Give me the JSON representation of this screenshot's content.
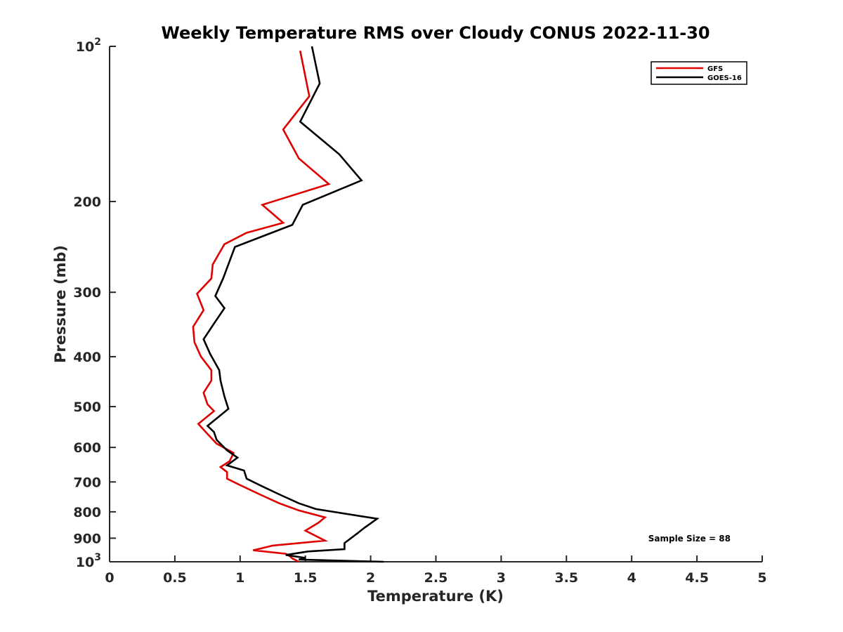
{
  "chart_data": {
    "type": "line",
    "title": "Weekly Temperature RMS over Cloudy CONUS 2022-11-30",
    "xlabel": "Temperature (K)",
    "ylabel": "Pressure (mb)",
    "xlim": [
      0,
      5
    ],
    "ylim": [
      100,
      1000
    ],
    "yscale": "log",
    "ydir": "reverse",
    "grid": false,
    "legend_position": "top-right",
    "x_ticks": [
      0,
      0.5,
      1,
      1.5,
      2,
      2.5,
      3,
      3.5,
      4,
      4.5,
      5
    ],
    "x_tick_labels": [
      "0",
      "0.5",
      "1",
      "1.5",
      "2",
      "2.5",
      "3",
      "3.5",
      "4",
      "4.5",
      "5"
    ],
    "y_ticks": [
      100,
      200,
      300,
      400,
      500,
      600,
      700,
      800,
      900,
      1000
    ],
    "y_tick_labels": [
      {
        "base": "10",
        "exp": "2"
      },
      {
        "base": "200",
        "exp": ""
      },
      {
        "base": "300",
        "exp": ""
      },
      {
        "base": "400",
        "exp": ""
      },
      {
        "base": "500",
        "exp": ""
      },
      {
        "base": "600",
        "exp": ""
      },
      {
        "base": "700",
        "exp": ""
      },
      {
        "base": "800",
        "exp": ""
      },
      {
        "base": "900",
        "exp": ""
      },
      {
        "base": "10",
        "exp": "3"
      }
    ],
    "annotation": "Sample Size = 88",
    "series": [
      {
        "name": "GFS",
        "color": "#e00000",
        "points": [
          [
            1.45,
            1000
          ],
          [
            1.4,
            985
          ],
          [
            1.38,
            975
          ],
          [
            1.35,
            965
          ],
          [
            1.1,
            950
          ],
          [
            1.25,
            930
          ],
          [
            1.65,
            910
          ],
          [
            1.5,
            870
          ],
          [
            1.6,
            840
          ],
          [
            1.65,
            820
          ],
          [
            1.45,
            795
          ],
          [
            1.3,
            770
          ],
          [
            1.15,
            740
          ],
          [
            1.0,
            710
          ],
          [
            0.9,
            690
          ],
          [
            0.9,
            670
          ],
          [
            0.85,
            655
          ],
          [
            0.92,
            638
          ],
          [
            0.95,
            615
          ],
          [
            0.82,
            590
          ],
          [
            0.75,
            565
          ],
          [
            0.68,
            540
          ],
          [
            0.8,
            510
          ],
          [
            0.75,
            495
          ],
          [
            0.72,
            470
          ],
          [
            0.78,
            445
          ],
          [
            0.78,
            425
          ],
          [
            0.7,
            400
          ],
          [
            0.65,
            375
          ],
          [
            0.64,
            350
          ],
          [
            0.72,
            325
          ],
          [
            0.67,
            302
          ],
          [
            0.78,
            282
          ],
          [
            0.79,
            265
          ],
          [
            0.88,
            242
          ],
          [
            1.05,
            230
          ],
          [
            1.33,
            220
          ],
          [
            1.17,
            203
          ],
          [
            1.68,
            185
          ],
          [
            1.45,
            165
          ],
          [
            1.33,
            145
          ],
          [
            1.53,
            125
          ],
          [
            1.46,
            102
          ]
        ]
      },
      {
        "name": "GOES-16",
        "color": "#000000",
        "points": [
          [
            2.1,
            1000
          ],
          [
            1.45,
            990
          ],
          [
            1.5,
            983
          ],
          [
            1.35,
            970
          ],
          [
            1.52,
            955
          ],
          [
            1.8,
            945
          ],
          [
            1.8,
            920
          ],
          [
            1.9,
            880
          ],
          [
            1.95,
            860
          ],
          [
            2.05,
            825
          ],
          [
            1.58,
            790
          ],
          [
            1.45,
            770
          ],
          [
            1.3,
            740
          ],
          [
            1.15,
            710
          ],
          [
            1.05,
            690
          ],
          [
            1.03,
            665
          ],
          [
            0.9,
            650
          ],
          [
            0.98,
            628
          ],
          [
            0.9,
            608
          ],
          [
            0.82,
            580
          ],
          [
            0.8,
            560
          ],
          [
            0.75,
            545
          ],
          [
            0.91,
            505
          ],
          [
            0.88,
            478
          ],
          [
            0.85,
            445
          ],
          [
            0.84,
            425
          ],
          [
            0.77,
            395
          ],
          [
            0.72,
            370
          ],
          [
            0.8,
            345
          ],
          [
            0.88,
            322
          ],
          [
            0.81,
            305
          ],
          [
            0.87,
            282
          ],
          [
            0.96,
            245
          ],
          [
            1.4,
            222
          ],
          [
            1.48,
            203
          ],
          [
            1.93,
            182
          ],
          [
            1.76,
            162
          ],
          [
            1.46,
            140
          ],
          [
            1.61,
            118
          ],
          [
            1.55,
            100
          ]
        ]
      }
    ]
  }
}
